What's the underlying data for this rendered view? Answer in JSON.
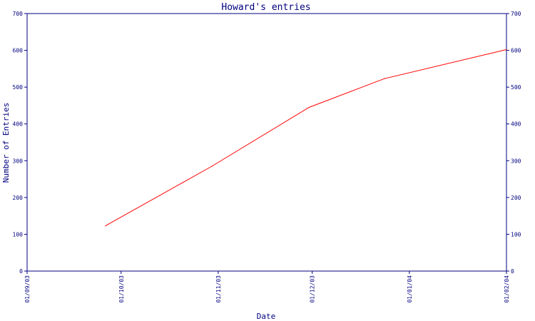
{
  "colors": {
    "axis": "#000080",
    "text": "#000080",
    "line": "#ff0000",
    "background": "#ffffff"
  },
  "chart_data": {
    "type": "line",
    "title": "Howard's entries",
    "xlabel": "Date",
    "ylabel": "Number of Entries",
    "ylim": [
      0,
      700
    ],
    "y_ticks": [
      0,
      100,
      200,
      300,
      400,
      500,
      600,
      700
    ],
    "xlim": [
      "2003-09-01",
      "2004-02-01"
    ],
    "x_tick_labels": [
      "01/09/03",
      "01/10/03",
      "01/11/03",
      "01/12/03",
      "01/01/04",
      "01/02/04"
    ],
    "x_tick_dates": [
      "2003-09-01",
      "2003-10-01",
      "2003-11-01",
      "2003-12-01",
      "2004-01-01",
      "2004-02-01"
    ],
    "grid": false,
    "right_axis_mirrored": true,
    "series": [
      {
        "x": [
          "2003-09-26",
          "2003-10-30",
          "2003-11-30",
          "2003-12-24",
          "2004-02-01"
        ],
        "y": [
          123,
          285,
          445,
          523,
          602
        ]
      }
    ]
  }
}
